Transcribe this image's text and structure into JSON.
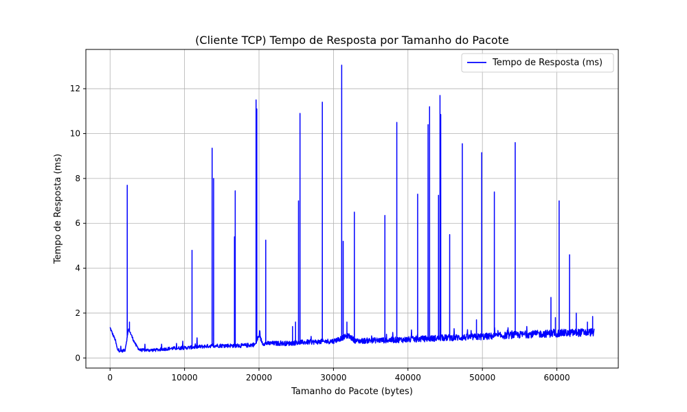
{
  "chart_data": {
    "type": "line",
    "title": "(Cliente TCP) Tempo de Resposta por Tamanho do Pacote",
    "xlabel": "Tamanho do Pacote (bytes)",
    "ylabel": "Tempo de Resposta (ms)",
    "xlim": [
      -3250,
      68250
    ],
    "ylim": [
      -0.45,
      13.75
    ],
    "xticks": [
      0,
      10000,
      20000,
      30000,
      40000,
      50000,
      60000
    ],
    "yticks": [
      0,
      2,
      4,
      6,
      8,
      10,
      12
    ],
    "grid": true,
    "legend_position": "top-right",
    "series": [
      {
        "name": "Tempo de Resposta (ms)",
        "color": "#0000ff",
        "baseline": [
          [
            0,
            1.35
          ],
          [
            300,
            1.1
          ],
          [
            700,
            0.8
          ],
          [
            1000,
            0.35
          ],
          [
            1500,
            0.3
          ],
          [
            2000,
            0.35
          ],
          [
            2500,
            1.3
          ],
          [
            3000,
            0.9
          ],
          [
            3500,
            0.55
          ],
          [
            4000,
            0.35
          ],
          [
            6000,
            0.35
          ],
          [
            8000,
            0.42
          ],
          [
            10000,
            0.45
          ],
          [
            12000,
            0.5
          ],
          [
            14000,
            0.55
          ],
          [
            16000,
            0.55
          ],
          [
            18000,
            0.55
          ],
          [
            19500,
            0.6
          ],
          [
            20000,
            1.0
          ],
          [
            20500,
            0.65
          ],
          [
            22000,
            0.65
          ],
          [
            24000,
            0.65
          ],
          [
            26000,
            0.7
          ],
          [
            28000,
            0.72
          ],
          [
            30000,
            0.75
          ],
          [
            32000,
            1.0
          ],
          [
            33000,
            0.75
          ],
          [
            35000,
            0.78
          ],
          [
            38000,
            0.8
          ],
          [
            40000,
            0.82
          ],
          [
            42000,
            0.85
          ],
          [
            45000,
            0.9
          ],
          [
            48000,
            0.92
          ],
          [
            50000,
            0.95
          ],
          [
            53000,
            1.0
          ],
          [
            56000,
            1.05
          ],
          [
            60000,
            1.1
          ],
          [
            65000,
            1.15
          ]
        ],
        "spikes": [
          [
            2300,
            7.7
          ],
          [
            2600,
            1.6
          ],
          [
            11000,
            4.8
          ],
          [
            13700,
            9.35
          ],
          [
            13900,
            8.0
          ],
          [
            16700,
            5.4
          ],
          [
            16800,
            7.45
          ],
          [
            19600,
            11.5
          ],
          [
            19700,
            11.1
          ],
          [
            20900,
            5.25
          ],
          [
            24500,
            1.4
          ],
          [
            24900,
            1.6
          ],
          [
            25300,
            7.0
          ],
          [
            25500,
            10.9
          ],
          [
            28500,
            11.4
          ],
          [
            31100,
            13.05
          ],
          [
            31300,
            5.2
          ],
          [
            31800,
            1.6
          ],
          [
            32800,
            6.5
          ],
          [
            36900,
            6.35
          ],
          [
            38500,
            10.5
          ],
          [
            41300,
            7.3
          ],
          [
            42700,
            10.4
          ],
          [
            42900,
            11.2
          ],
          [
            44100,
            7.25
          ],
          [
            44300,
            11.7
          ],
          [
            44400,
            10.85
          ],
          [
            45600,
            5.5
          ],
          [
            47300,
            9.55
          ],
          [
            49200,
            1.7
          ],
          [
            49900,
            9.15
          ],
          [
            51600,
            7.4
          ],
          [
            54400,
            9.6
          ],
          [
            59200,
            2.7
          ],
          [
            59800,
            1.8
          ],
          [
            60300,
            7.0
          ],
          [
            61700,
            4.6
          ],
          [
            62600,
            2.0
          ],
          [
            64100,
            1.6
          ],
          [
            64800,
            1.85
          ]
        ]
      }
    ]
  }
}
